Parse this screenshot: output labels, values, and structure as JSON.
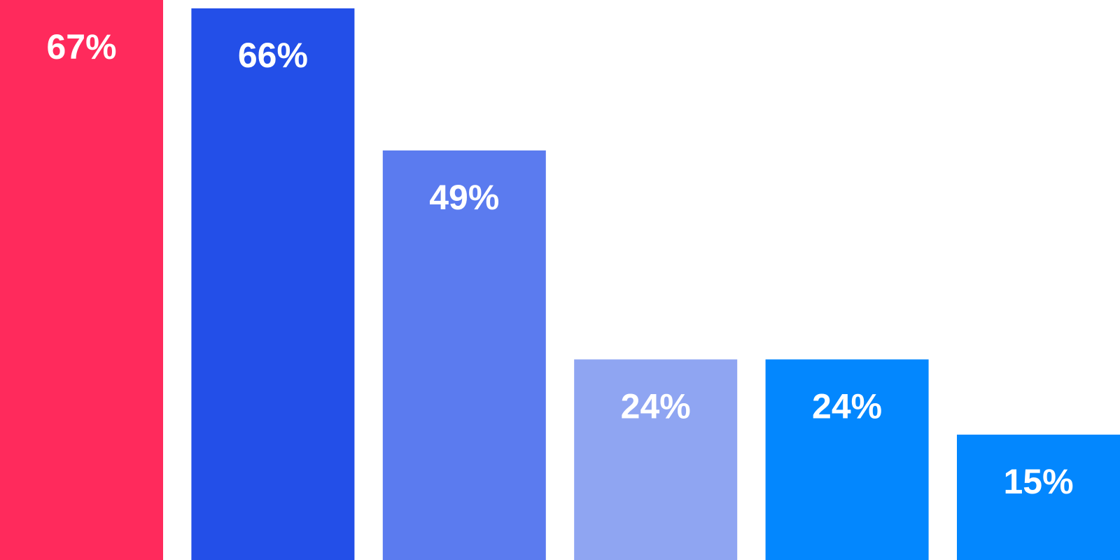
{
  "chart_data": {
    "type": "bar",
    "categories": [
      "",
      "",
      "",
      "",
      "",
      ""
    ],
    "values": [
      67,
      66,
      49,
      24,
      24,
      15
    ],
    "value_labels": [
      "67%",
      "66%",
      "49%",
      "24%",
      "24%",
      "15%"
    ],
    "colors": [
      "#ff2a5c",
      "#234fe8",
      "#5b7bef",
      "#8fa5f2",
      "#0387fe",
      "#0387fe"
    ],
    "ylim": [
      0,
      67
    ],
    "title": "",
    "xlabel": "",
    "ylabel": "",
    "grid": false,
    "legend": "none"
  }
}
